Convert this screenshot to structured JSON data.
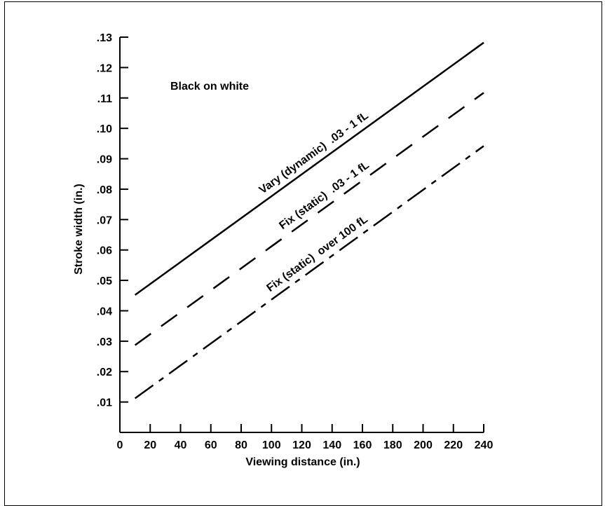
{
  "chart_data": {
    "type": "line",
    "title": "",
    "xlabel": "Viewing distance (in.)",
    "ylabel": "Stroke width (in.)",
    "xlim": [
      0,
      240
    ],
    "ylim": [
      0,
      0.13
    ],
    "x_ticks": [
      0,
      20,
      40,
      60,
      80,
      100,
      120,
      140,
      160,
      180,
      200,
      220,
      240
    ],
    "x_tick_labels": [
      "0",
      "20",
      "40",
      "60",
      "80",
      "100",
      "120",
      "140",
      "160",
      "180",
      "200",
      "220",
      "240"
    ],
    "y_ticks": [
      0.01,
      0.02,
      0.03,
      0.04,
      0.05,
      0.06,
      0.07,
      0.08,
      0.09,
      0.1,
      0.11,
      0.12,
      0.13
    ],
    "y_tick_labels": [
      ".01",
      ".02",
      ".03",
      ".04",
      ".05",
      ".06",
      ".07",
      ".08",
      ".09",
      ".10",
      ".11",
      ".12",
      ".13"
    ],
    "grid": false,
    "annotation": "Black on white",
    "series": [
      {
        "name": "Vary (dynamic)  .03 - 1 fL",
        "style": "solid",
        "x": [
          10,
          240
        ],
        "y": [
          0.0452,
          0.1282
        ]
      },
      {
        "name": "Fix (static)  .03 - 1 fL",
        "style": "dashed",
        "x": [
          10,
          240
        ],
        "y": [
          0.0287,
          0.1117
        ]
      },
      {
        "name": "Fix (static)  over 100 fL",
        "style": "dash-dot",
        "x": [
          10,
          240
        ],
        "y": [
          0.0112,
          0.0942
        ]
      }
    ]
  }
}
